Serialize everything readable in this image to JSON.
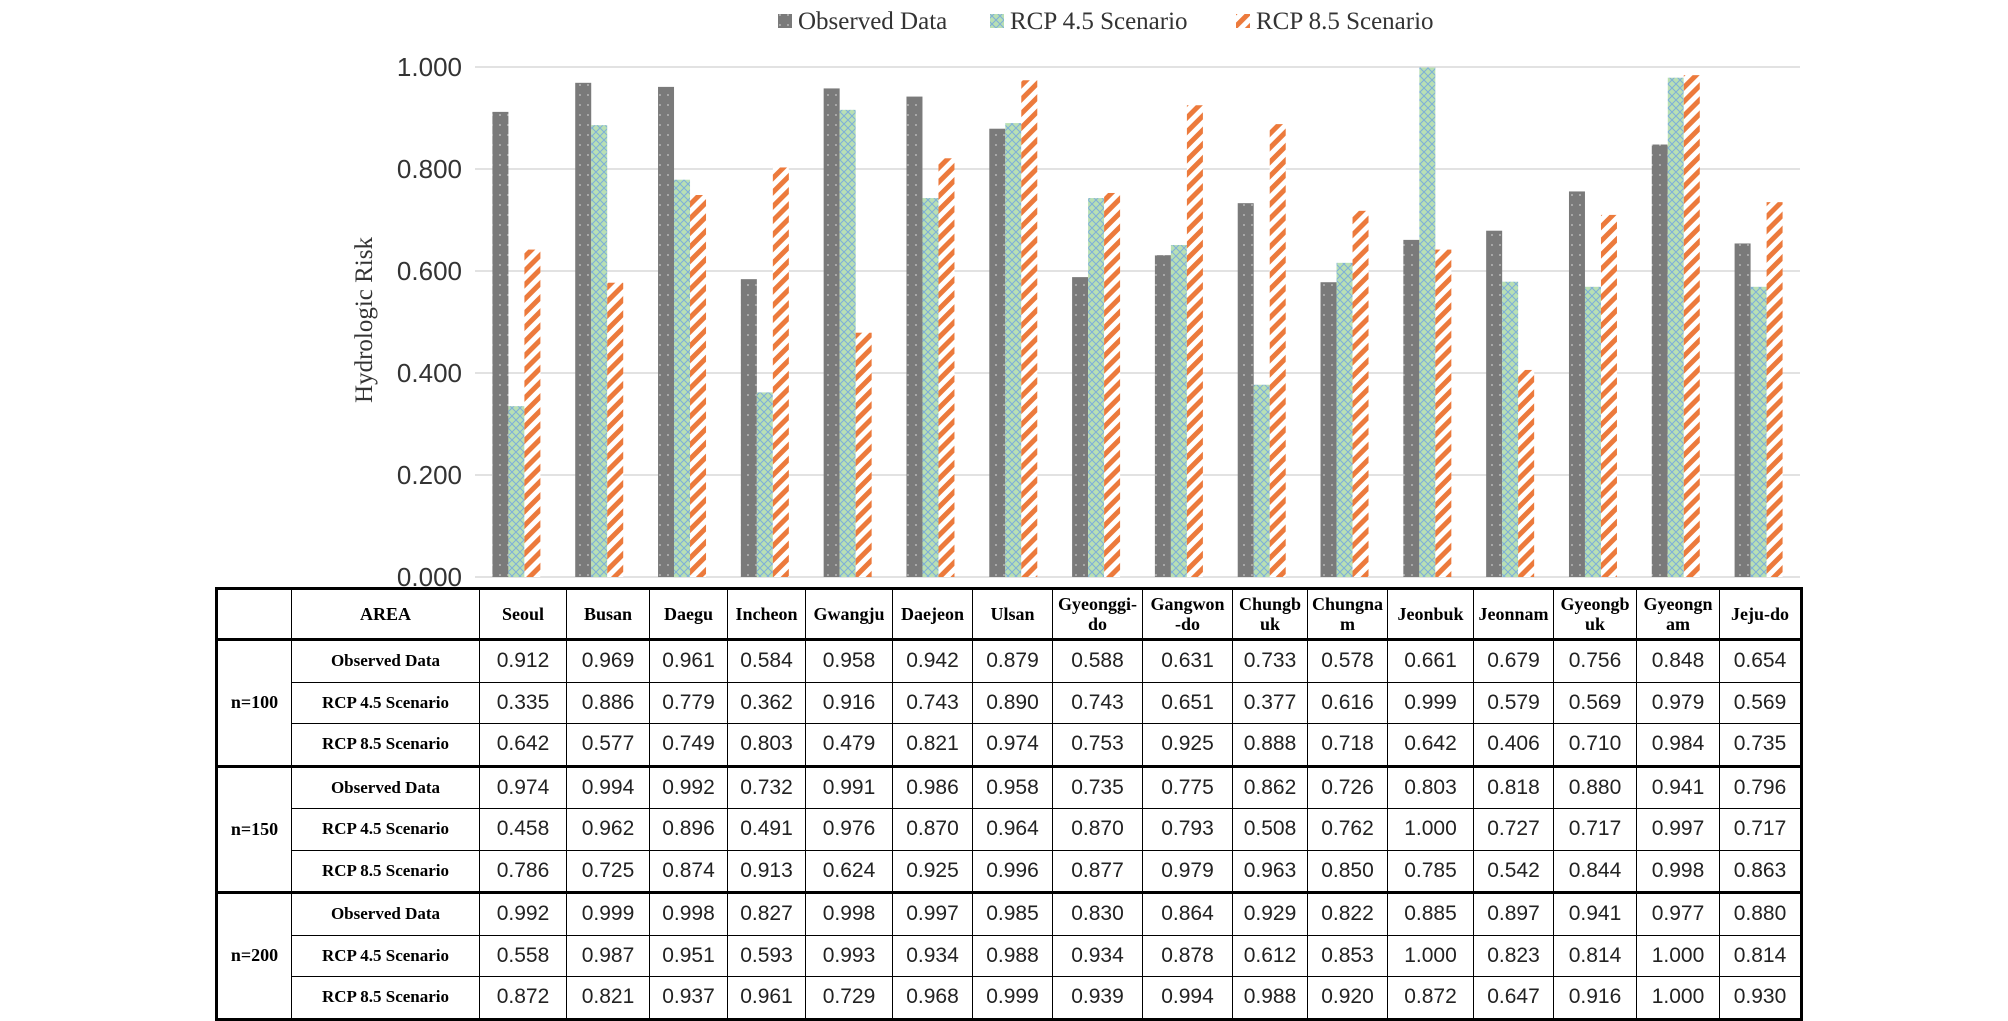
{
  "chart_data": {
    "type": "bar",
    "ylabel": "Hydrologic Risk",
    "ylim": [
      0,
      1
    ],
    "yticks": [
      "0.000",
      "0.200",
      "0.400",
      "0.600",
      "0.800",
      "1.000"
    ],
    "grid": true,
    "legend_position": "top",
    "categories": [
      "Seoul",
      "Busan",
      "Daegu",
      "Incheon",
      "Gwangju",
      "Daejeon",
      "Ulsan",
      "Gyeonggi-do",
      "Gangwon-do",
      "Chungbuk",
      "Chungnam",
      "Jeonbuk",
      "Jeonnam",
      "Gyeongbuk",
      "Gyeongnam",
      "Jeju-do"
    ],
    "series": [
      {
        "name": "Observed Data",
        "color": "#7a7a7a",
        "values": [
          0.912,
          0.969,
          0.961,
          0.584,
          0.958,
          0.942,
          0.879,
          0.588,
          0.631,
          0.733,
          0.578,
          0.661,
          0.679,
          0.756,
          0.848,
          0.654
        ]
      },
      {
        "name": "RCP 4.5 Scenario",
        "color": "#a8d5a2",
        "values": [
          0.335,
          0.886,
          0.779,
          0.362,
          0.916,
          0.743,
          0.89,
          0.743,
          0.651,
          0.377,
          0.616,
          0.999,
          0.579,
          0.569,
          0.979,
          0.569
        ]
      },
      {
        "name": "RCP 8.5 Scenario",
        "color": "#ec7a3c",
        "values": [
          0.642,
          0.577,
          0.749,
          0.803,
          0.479,
          0.821,
          0.974,
          0.753,
          0.925,
          0.888,
          0.718,
          0.642,
          0.406,
          0.71,
          0.984,
          0.735
        ]
      }
    ]
  },
  "table": {
    "area_label": "AREA",
    "area_headers": [
      [
        "Seoul"
      ],
      [
        "Busan"
      ],
      [
        "Daegu"
      ],
      [
        "Incheon"
      ],
      [
        "Gwangju"
      ],
      [
        "Daejeon"
      ],
      [
        "Ulsan"
      ],
      [
        "Gyeonggi-",
        "do"
      ],
      [
        "Gangwon",
        "-do"
      ],
      [
        "Chungb",
        "uk"
      ],
      [
        "Chungna",
        "m"
      ],
      [
        "Jeonbuk"
      ],
      [
        "Jeonnam"
      ],
      [
        "Gyeongb",
        "uk"
      ],
      [
        "Gyeongn",
        "am"
      ],
      [
        "Jeju-do"
      ]
    ],
    "groups": [
      {
        "label": "n=100",
        "rows": [
          {
            "label": "Observed Data",
            "values": [
              "0.912",
              "0.969",
              "0.961",
              "0.584",
              "0.958",
              "0.942",
              "0.879",
              "0.588",
              "0.631",
              "0.733",
              "0.578",
              "0.661",
              "0.679",
              "0.756",
              "0.848",
              "0.654"
            ]
          },
          {
            "label": "RCP 4.5 Scenario",
            "values": [
              "0.335",
              "0.886",
              "0.779",
              "0.362",
              "0.916",
              "0.743",
              "0.890",
              "0.743",
              "0.651",
              "0.377",
              "0.616",
              "0.999",
              "0.579",
              "0.569",
              "0.979",
              "0.569"
            ]
          },
          {
            "label": "RCP 8.5 Scenario",
            "values": [
              "0.642",
              "0.577",
              "0.749",
              "0.803",
              "0.479",
              "0.821",
              "0.974",
              "0.753",
              "0.925",
              "0.888",
              "0.718",
              "0.642",
              "0.406",
              "0.710",
              "0.984",
              "0.735"
            ]
          }
        ]
      },
      {
        "label": "n=150",
        "rows": [
          {
            "label": "Observed Data",
            "values": [
              "0.974",
              "0.994",
              "0.992",
              "0.732",
              "0.991",
              "0.986",
              "0.958",
              "0.735",
              "0.775",
              "0.862",
              "0.726",
              "0.803",
              "0.818",
              "0.880",
              "0.941",
              "0.796"
            ]
          },
          {
            "label": "RCP 4.5 Scenario",
            "values": [
              "0.458",
              "0.962",
              "0.896",
              "0.491",
              "0.976",
              "0.870",
              "0.964",
              "0.870",
              "0.793",
              "0.508",
              "0.762",
              "1.000",
              "0.727",
              "0.717",
              "0.997",
              "0.717"
            ]
          },
          {
            "label": "RCP 8.5 Scenario",
            "values": [
              "0.786",
              "0.725",
              "0.874",
              "0.913",
              "0.624",
              "0.925",
              "0.996",
              "0.877",
              "0.979",
              "0.963",
              "0.850",
              "0.785",
              "0.542",
              "0.844",
              "0.998",
              "0.863"
            ]
          }
        ]
      },
      {
        "label": "n=200",
        "rows": [
          {
            "label": "Observed Data",
            "values": [
              "0.992",
              "0.999",
              "0.998",
              "0.827",
              "0.998",
              "0.997",
              "0.985",
              "0.830",
              "0.864",
              "0.929",
              "0.822",
              "0.885",
              "0.897",
              "0.941",
              "0.977",
              "0.880"
            ]
          },
          {
            "label": "RCP 4.5 Scenario",
            "values": [
              "0.558",
              "0.987",
              "0.951",
              "0.593",
              "0.993",
              "0.934",
              "0.988",
              "0.934",
              "0.878",
              "0.612",
              "0.853",
              "1.000",
              "0.823",
              "0.814",
              "1.000",
              "0.814"
            ]
          },
          {
            "label": "RCP 8.5 Scenario",
            "values": [
              "0.872",
              "0.821",
              "0.937",
              "0.961",
              "0.729",
              "0.968",
              "0.999",
              "0.939",
              "0.994",
              "0.988",
              "0.920",
              "0.872",
              "0.647",
              "0.916",
              "1.000",
              "0.930"
            ]
          }
        ]
      }
    ]
  }
}
